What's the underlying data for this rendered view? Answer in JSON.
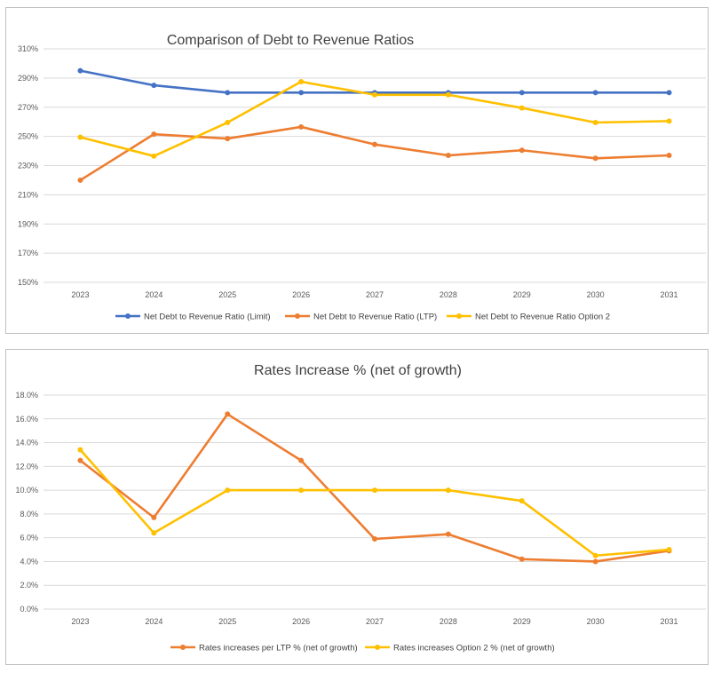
{
  "chart_data": [
    {
      "type": "line",
      "title": "Comparison of Debt to Revenue Ratios",
      "xlabel": "",
      "ylabel": "",
      "x": [
        "2023",
        "2024",
        "2025",
        "2026",
        "2027",
        "2028",
        "2029",
        "2030",
        "2031"
      ],
      "ylim": [
        150,
        310
      ],
      "yticks": [
        "310%",
        "290%",
        "270%",
        "250%",
        "230%",
        "210%",
        "190%",
        "170%",
        "150%"
      ],
      "grid": true,
      "legend": "bottom",
      "series": [
        {
          "name": "Net Debt to Revenue Ratio (Limit)",
          "color": "#4472c4",
          "values": [
            295,
            285,
            280,
            280,
            280,
            280,
            280,
            280,
            280
          ]
        },
        {
          "name": "Net Debt to Revenue Ratio (LTP)",
          "color": "#ed7d31",
          "values": [
            220,
            251.5,
            248.5,
            256.5,
            244.5,
            237,
            240.5,
            235,
            237
          ]
        },
        {
          "name": "Net Debt to Revenue Ratio Option 2",
          "color": "#ffc000",
          "values": [
            249.5,
            236.5,
            259.5,
            287.5,
            278.5,
            278.5,
            269.5,
            259.5,
            260.5
          ]
        }
      ]
    },
    {
      "type": "line",
      "title": "Rates Increase % (net of growth)",
      "xlabel": "",
      "ylabel": "",
      "x": [
        "2023",
        "2024",
        "2025",
        "2026",
        "2027",
        "2028",
        "2029",
        "2030",
        "2031"
      ],
      "ylim": [
        0,
        18
      ],
      "yticks": [
        "18.0%",
        "16.0%",
        "14.0%",
        "12.0%",
        "10.0%",
        "8.0%",
        "6.0%",
        "4.0%",
        "2.0%",
        "0.0%"
      ],
      "grid": true,
      "legend": "bottom",
      "series": [
        {
          "name": "Rates increases per LTP % (net of growth)",
          "color": "#ed7d31",
          "values": [
            12.5,
            7.7,
            16.4,
            12.5,
            5.9,
            6.3,
            4.2,
            4.0,
            4.9
          ]
        },
        {
          "name": "Rates increases Option 2 % (net of growth)",
          "color": "#ffc000",
          "values": [
            13.4,
            6.4,
            10.0,
            10.0,
            10.0,
            10.0,
            9.1,
            4.5,
            5.0
          ]
        }
      ]
    }
  ]
}
